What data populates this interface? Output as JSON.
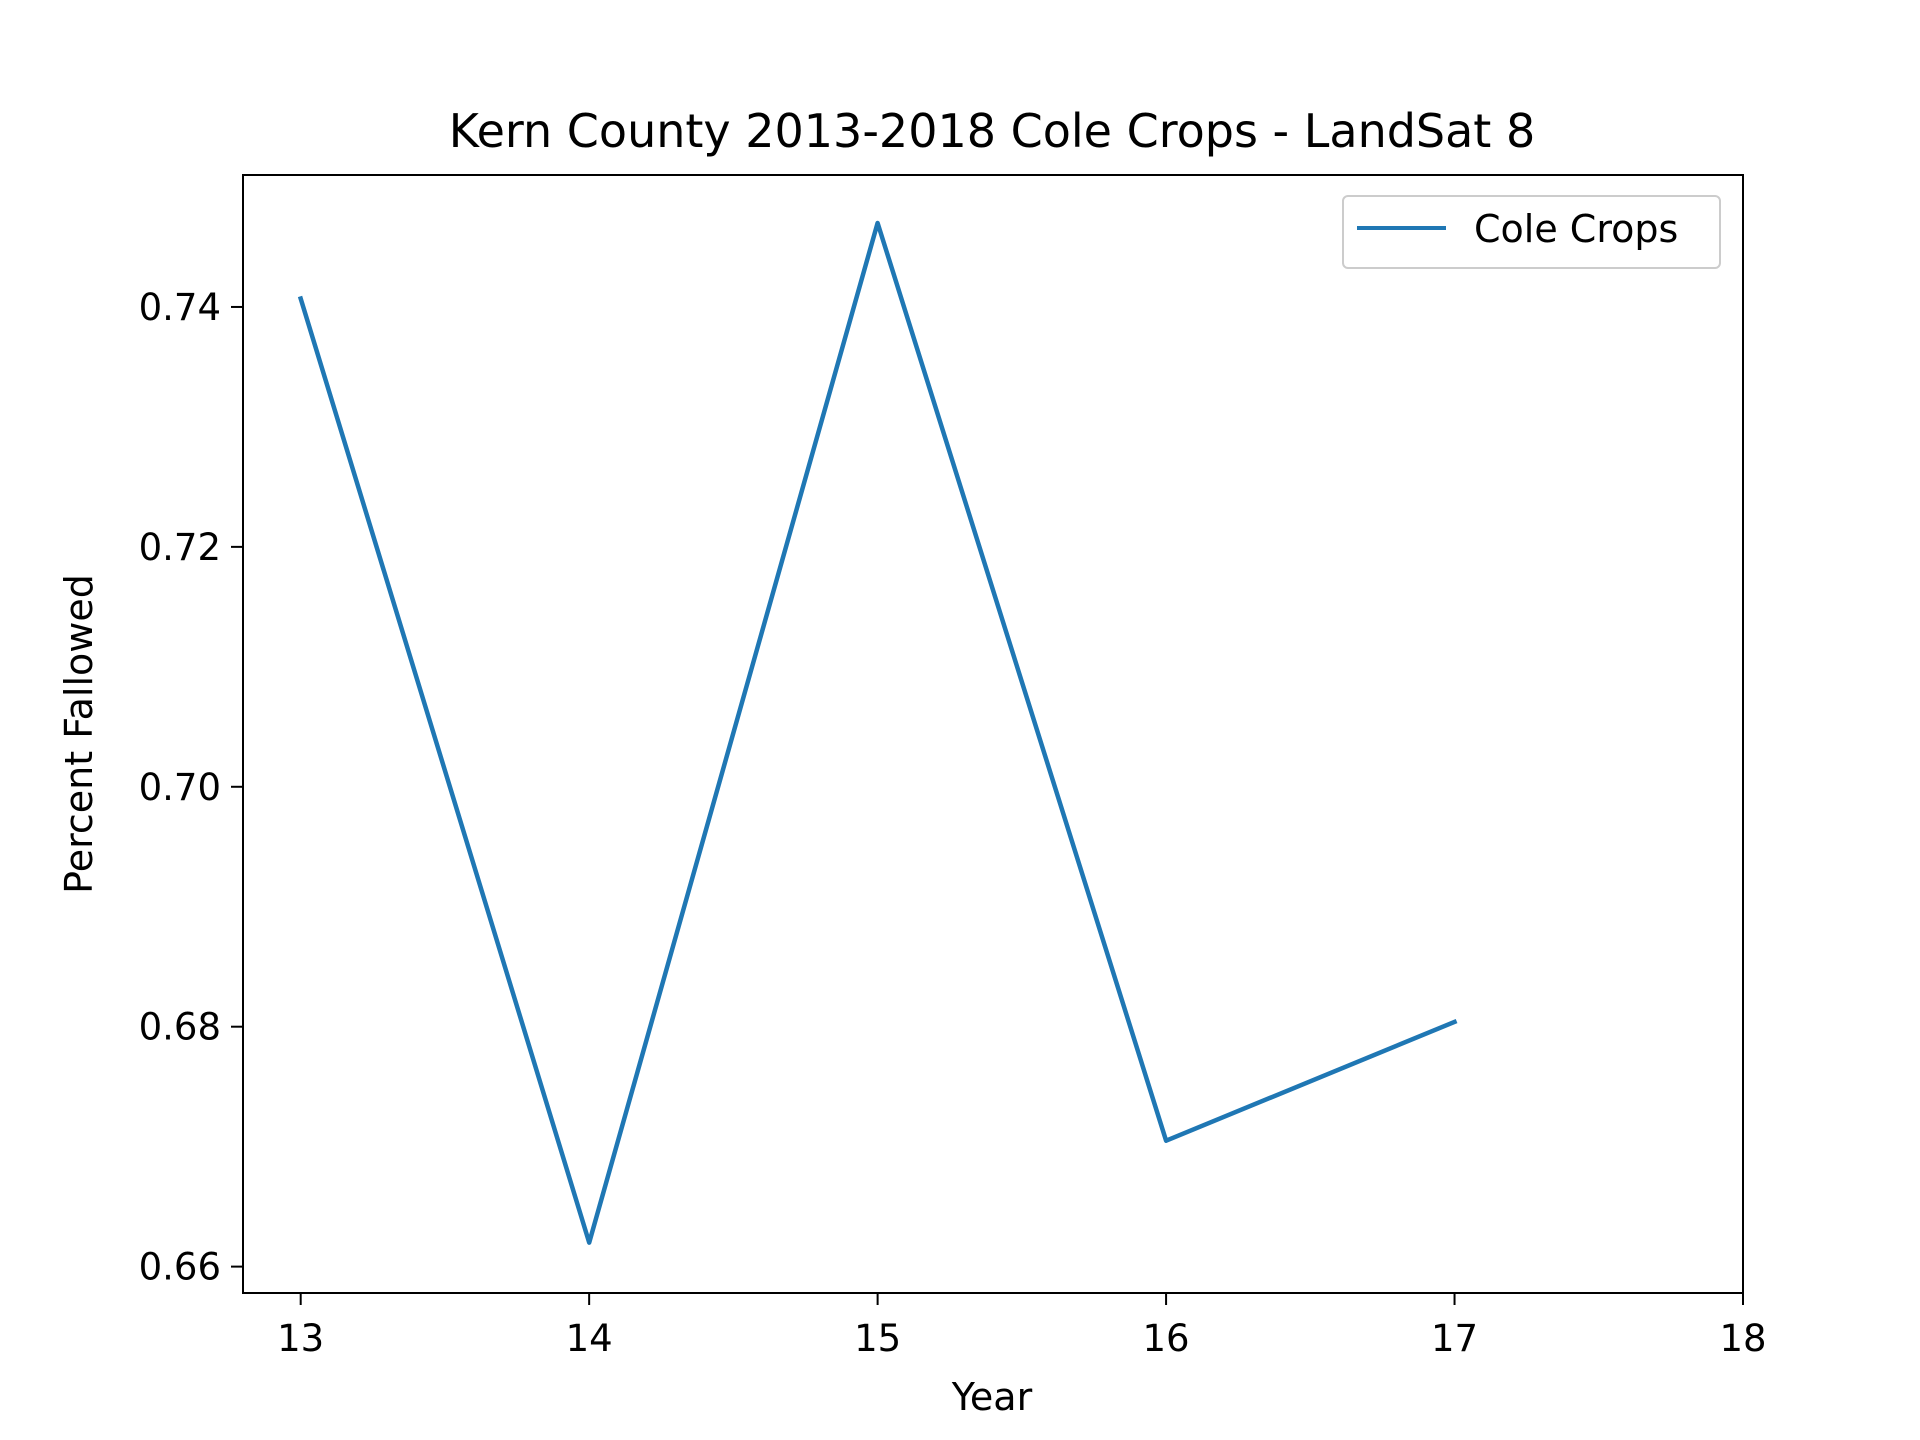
{
  "chart_data": {
    "type": "line",
    "title": "Kern County 2013-2018 Cole Crops - LandSat 8",
    "xlabel": "Year",
    "ylabel": "Percent Fallowed",
    "xlim": [
      12.8,
      18.0
    ],
    "ylim": [
      0.6578,
      0.751
    ],
    "xticks": [
      13,
      14,
      15,
      16,
      17,
      18
    ],
    "xtick_labels": [
      "13",
      "14",
      "15",
      "16",
      "17",
      "18"
    ],
    "yticks": [
      0.66,
      0.68,
      0.7,
      0.72,
      0.74
    ],
    "ytick_labels": [
      "0.66",
      "0.68",
      "0.70",
      "0.72",
      "0.74"
    ],
    "grid": false,
    "legend": "top-right",
    "series": [
      {
        "name": "Cole Crops",
        "color": "#1f77b4",
        "x": [
          13,
          14,
          15,
          16,
          17
        ],
        "y": [
          0.7407,
          0.662,
          0.747,
          0.6705,
          0.6804
        ]
      }
    ]
  }
}
